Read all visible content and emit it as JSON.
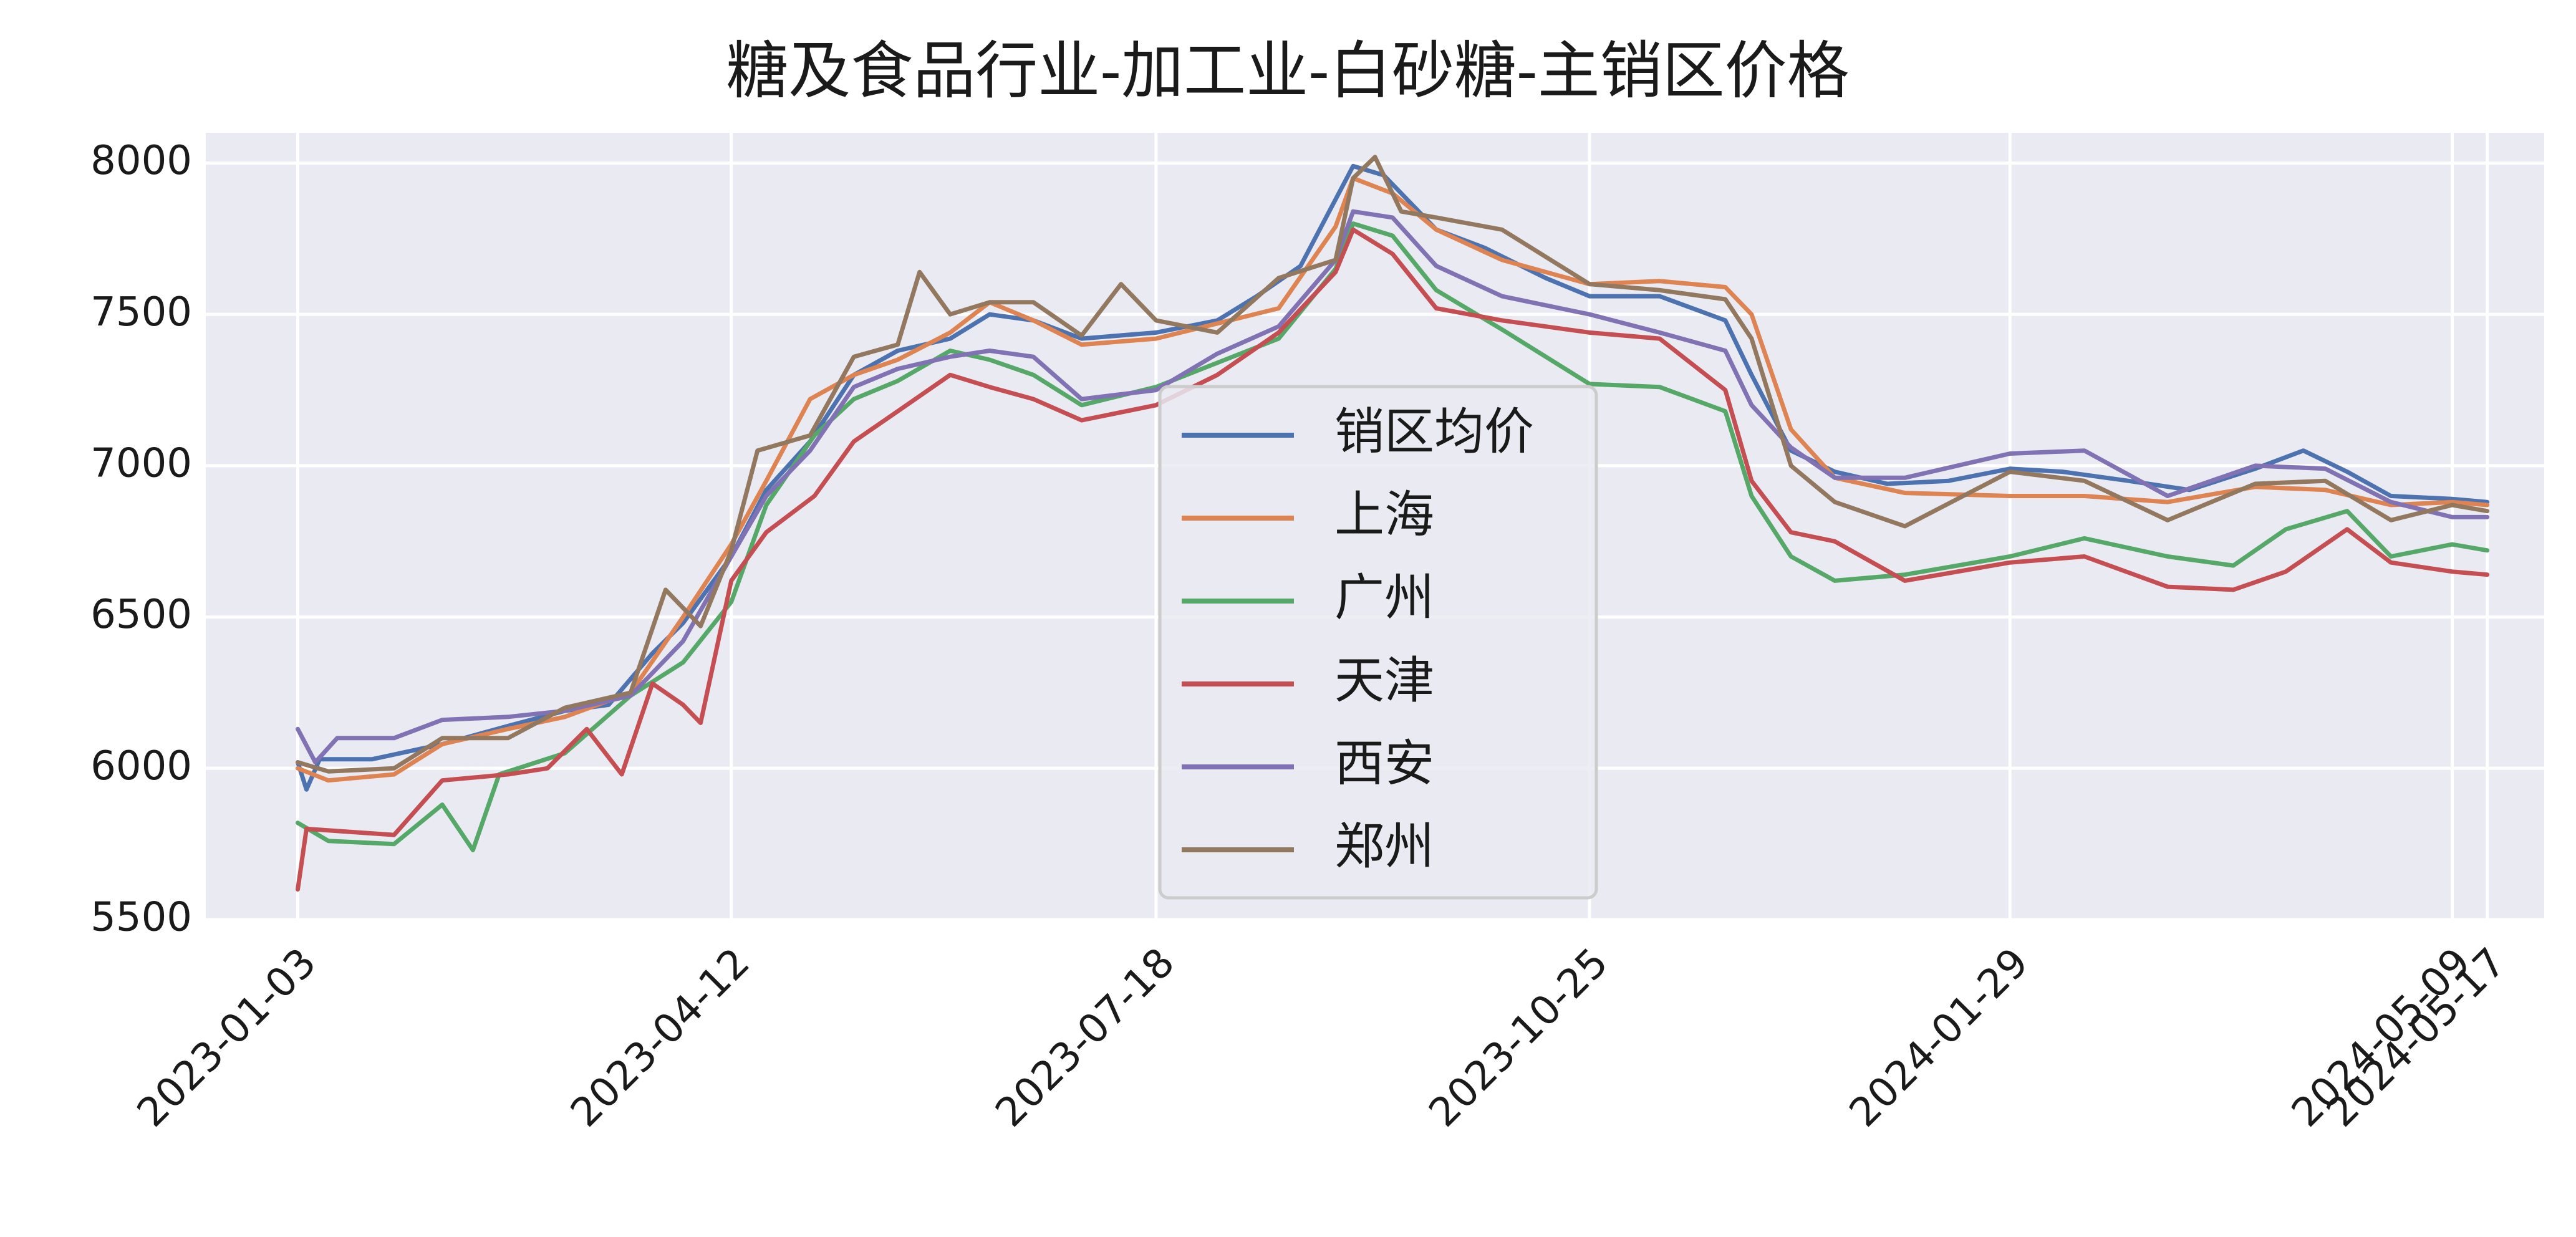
{
  "chart_data": {
    "type": "line",
    "title": "糖及食品行业-加工业-白砂糖-主销区价格",
    "xlabel": "",
    "ylabel": "",
    "ylim": [
      5500,
      8100
    ],
    "yticks": [
      5500,
      6000,
      6500,
      7000,
      7500,
      8000
    ],
    "xlim": [
      "2022-12-13",
      "2024-05-30"
    ],
    "xticks": [
      "2023-01-03",
      "2023-04-12",
      "2023-07-18",
      "2023-10-25",
      "2024-01-29",
      "2024-05-09",
      "2024-05-17"
    ],
    "grid": true,
    "legend_position": "center",
    "series": [
      {
        "name": "销区均价",
        "color": "#4c72b0",
        "points": [
          [
            "2023-01-03",
            6020
          ],
          [
            "2023-01-05",
            5930
          ],
          [
            "2023-01-08",
            6030
          ],
          [
            "2023-01-20",
            6030
          ],
          [
            "2023-02-05",
            6080
          ],
          [
            "2023-02-20",
            6140
          ],
          [
            "2023-03-05",
            6190
          ],
          [
            "2023-03-15",
            6210
          ],
          [
            "2023-03-25",
            6380
          ],
          [
            "2023-04-01",
            6480
          ],
          [
            "2023-04-12",
            6700
          ],
          [
            "2023-04-20",
            6920
          ],
          [
            "2023-04-30",
            7080
          ],
          [
            "2023-05-10",
            7300
          ],
          [
            "2023-05-20",
            7380
          ],
          [
            "2023-06-01",
            7420
          ],
          [
            "2023-06-10",
            7500
          ],
          [
            "2023-06-20",
            7480
          ],
          [
            "2023-07-01",
            7420
          ],
          [
            "2023-07-18",
            7440
          ],
          [
            "2023-08-01",
            7480
          ],
          [
            "2023-08-10",
            7560
          ],
          [
            "2023-08-20",
            7660
          ],
          [
            "2023-08-28",
            7880
          ],
          [
            "2023-09-01",
            7990
          ],
          [
            "2023-09-08",
            7960
          ],
          [
            "2023-09-20",
            7780
          ],
          [
            "2023-10-01",
            7720
          ],
          [
            "2023-10-15",
            7620
          ],
          [
            "2023-10-25",
            7560
          ],
          [
            "2023-11-10",
            7560
          ],
          [
            "2023-11-25",
            7480
          ],
          [
            "2023-12-01",
            7300
          ],
          [
            "2023-12-10",
            7050
          ],
          [
            "2023-12-20",
            6980
          ],
          [
            "2024-01-01",
            6940
          ],
          [
            "2024-01-15",
            6950
          ],
          [
            "2024-01-29",
            6990
          ],
          [
            "2024-02-10",
            6980
          ],
          [
            "2024-02-25",
            6950
          ],
          [
            "2024-03-10",
            6920
          ],
          [
            "2024-03-25",
            6990
          ],
          [
            "2024-04-05",
            7050
          ],
          [
            "2024-04-15",
            6980
          ],
          [
            "2024-04-25",
            6900
          ],
          [
            "2024-05-09",
            6890
          ],
          [
            "2024-05-17",
            6880
          ]
        ]
      },
      {
        "name": "上海",
        "color": "#dd8452",
        "points": [
          [
            "2023-01-03",
            6000
          ],
          [
            "2023-01-10",
            5960
          ],
          [
            "2023-01-25",
            5980
          ],
          [
            "2023-02-05",
            6080
          ],
          [
            "2023-02-20",
            6130
          ],
          [
            "2023-03-05",
            6170
          ],
          [
            "2023-03-20",
            6250
          ],
          [
            "2023-04-01",
            6500
          ],
          [
            "2023-04-12",
            6740
          ],
          [
            "2023-04-20",
            6950
          ],
          [
            "2023-04-30",
            7220
          ],
          [
            "2023-05-10",
            7300
          ],
          [
            "2023-05-20",
            7350
          ],
          [
            "2023-06-01",
            7440
          ],
          [
            "2023-06-10",
            7540
          ],
          [
            "2023-06-20",
            7480
          ],
          [
            "2023-07-01",
            7400
          ],
          [
            "2023-07-18",
            7420
          ],
          [
            "2023-08-01",
            7470
          ],
          [
            "2023-08-15",
            7520
          ],
          [
            "2023-08-28",
            7790
          ],
          [
            "2023-09-01",
            7950
          ],
          [
            "2023-09-10",
            7900
          ],
          [
            "2023-09-20",
            7780
          ],
          [
            "2023-10-05",
            7680
          ],
          [
            "2023-10-25",
            7600
          ],
          [
            "2023-11-10",
            7610
          ],
          [
            "2023-11-25",
            7590
          ],
          [
            "2023-12-01",
            7500
          ],
          [
            "2023-12-10",
            7120
          ],
          [
            "2023-12-20",
            6960
          ],
          [
            "2024-01-05",
            6910
          ],
          [
            "2024-01-29",
            6900
          ],
          [
            "2024-02-15",
            6900
          ],
          [
            "2024-03-05",
            6880
          ],
          [
            "2024-03-25",
            6930
          ],
          [
            "2024-04-10",
            6920
          ],
          [
            "2024-04-25",
            6870
          ],
          [
            "2024-05-09",
            6880
          ],
          [
            "2024-05-17",
            6870
          ]
        ]
      },
      {
        "name": "广州",
        "color": "#55a868",
        "points": [
          [
            "2023-01-03",
            5820
          ],
          [
            "2023-01-10",
            5760
          ],
          [
            "2023-01-25",
            5750
          ],
          [
            "2023-02-05",
            5880
          ],
          [
            "2023-02-12",
            5730
          ],
          [
            "2023-02-18",
            5980
          ],
          [
            "2023-03-05",
            6050
          ],
          [
            "2023-03-20",
            6240
          ],
          [
            "2023-04-01",
            6350
          ],
          [
            "2023-04-12",
            6550
          ],
          [
            "2023-04-20",
            6870
          ],
          [
            "2023-05-01",
            7100
          ],
          [
            "2023-05-10",
            7220
          ],
          [
            "2023-05-20",
            7280
          ],
          [
            "2023-06-01",
            7380
          ],
          [
            "2023-06-10",
            7350
          ],
          [
            "2023-06-20",
            7300
          ],
          [
            "2023-07-01",
            7200
          ],
          [
            "2023-07-18",
            7260
          ],
          [
            "2023-08-01",
            7340
          ],
          [
            "2023-08-15",
            7420
          ],
          [
            "2023-08-28",
            7650
          ],
          [
            "2023-09-01",
            7800
          ],
          [
            "2023-09-10",
            7760
          ],
          [
            "2023-09-20",
            7580
          ],
          [
            "2023-10-05",
            7450
          ],
          [
            "2023-10-25",
            7270
          ],
          [
            "2023-11-10",
            7260
          ],
          [
            "2023-11-25",
            7180
          ],
          [
            "2023-12-01",
            6900
          ],
          [
            "2023-12-10",
            6700
          ],
          [
            "2023-12-20",
            6620
          ],
          [
            "2024-01-05",
            6640
          ],
          [
            "2024-01-29",
            6700
          ],
          [
            "2024-02-15",
            6760
          ],
          [
            "2024-03-05",
            6700
          ],
          [
            "2024-03-20",
            6670
          ],
          [
            "2024-04-01",
            6790
          ],
          [
            "2024-04-15",
            6850
          ],
          [
            "2024-04-25",
            6700
          ],
          [
            "2024-05-09",
            6740
          ],
          [
            "2024-05-17",
            6720
          ]
        ]
      },
      {
        "name": "天津",
        "color": "#c44e52",
        "points": [
          [
            "2023-01-03",
            5600
          ],
          [
            "2023-01-05",
            5800
          ],
          [
            "2023-01-15",
            5790
          ],
          [
            "2023-01-25",
            5780
          ],
          [
            "2023-02-05",
            5960
          ],
          [
            "2023-02-20",
            5980
          ],
          [
            "2023-03-01",
            6000
          ],
          [
            "2023-03-10",
            6130
          ],
          [
            "2023-03-18",
            5980
          ],
          [
            "2023-03-25",
            6280
          ],
          [
            "2023-04-01",
            6210
          ],
          [
            "2023-04-05",
            6150
          ],
          [
            "2023-04-12",
            6620
          ],
          [
            "2023-04-20",
            6780
          ],
          [
            "2023-05-01",
            6900
          ],
          [
            "2023-05-10",
            7080
          ],
          [
            "2023-05-20",
            7180
          ],
          [
            "2023-06-01",
            7300
          ],
          [
            "2023-06-10",
            7260
          ],
          [
            "2023-06-20",
            7220
          ],
          [
            "2023-07-01",
            7150
          ],
          [
            "2023-07-18",
            7200
          ],
          [
            "2023-08-01",
            7300
          ],
          [
            "2023-08-15",
            7440
          ],
          [
            "2023-08-28",
            7640
          ],
          [
            "2023-09-01",
            7780
          ],
          [
            "2023-09-10",
            7700
          ],
          [
            "2023-09-20",
            7520
          ],
          [
            "2023-10-05",
            7480
          ],
          [
            "2023-10-25",
            7440
          ],
          [
            "2023-11-10",
            7420
          ],
          [
            "2023-11-25",
            7250
          ],
          [
            "2023-12-01",
            6950
          ],
          [
            "2023-12-10",
            6780
          ],
          [
            "2023-12-20",
            6750
          ],
          [
            "2024-01-05",
            6620
          ],
          [
            "2024-01-29",
            6680
          ],
          [
            "2024-02-15",
            6700
          ],
          [
            "2024-03-05",
            6600
          ],
          [
            "2024-03-20",
            6590
          ],
          [
            "2024-04-01",
            6650
          ],
          [
            "2024-04-15",
            6790
          ],
          [
            "2024-04-25",
            6680
          ],
          [
            "2024-05-09",
            6650
          ],
          [
            "2024-05-17",
            6640
          ]
        ]
      },
      {
        "name": "西安",
        "color": "#8172b3",
        "points": [
          [
            "2023-01-03",
            6130
          ],
          [
            "2023-01-07",
            6020
          ],
          [
            "2023-01-12",
            6100
          ],
          [
            "2023-01-25",
            6100
          ],
          [
            "2023-02-05",
            6160
          ],
          [
            "2023-02-20",
            6170
          ],
          [
            "2023-03-05",
            6190
          ],
          [
            "2023-03-20",
            6240
          ],
          [
            "2023-04-01",
            6420
          ],
          [
            "2023-04-12",
            6700
          ],
          [
            "2023-04-20",
            6900
          ],
          [
            "2023-04-30",
            7050
          ],
          [
            "2023-05-10",
            7260
          ],
          [
            "2023-05-20",
            7320
          ],
          [
            "2023-06-01",
            7360
          ],
          [
            "2023-06-10",
            7380
          ],
          [
            "2023-06-20",
            7360
          ],
          [
            "2023-07-01",
            7220
          ],
          [
            "2023-07-18",
            7250
          ],
          [
            "2023-08-01",
            7370
          ],
          [
            "2023-08-15",
            7460
          ],
          [
            "2023-08-28",
            7680
          ],
          [
            "2023-09-01",
            7840
          ],
          [
            "2023-09-10",
            7820
          ],
          [
            "2023-09-20",
            7660
          ],
          [
            "2023-10-05",
            7560
          ],
          [
            "2023-10-25",
            7500
          ],
          [
            "2023-11-10",
            7440
          ],
          [
            "2023-11-25",
            7380
          ],
          [
            "2023-12-01",
            7200
          ],
          [
            "2023-12-10",
            7060
          ],
          [
            "2023-12-20",
            6960
          ],
          [
            "2024-01-05",
            6960
          ],
          [
            "2024-01-29",
            7040
          ],
          [
            "2024-02-15",
            7050
          ],
          [
            "2024-03-05",
            6900
          ],
          [
            "2024-03-25",
            7000
          ],
          [
            "2024-04-10",
            6990
          ],
          [
            "2024-04-25",
            6880
          ],
          [
            "2024-05-09",
            6830
          ],
          [
            "2024-05-17",
            6830
          ]
        ]
      },
      {
        "name": "郑州",
        "color": "#937860",
        "points": [
          [
            "2023-01-03",
            6020
          ],
          [
            "2023-01-10",
            5990
          ],
          [
            "2023-01-25",
            6000
          ],
          [
            "2023-02-05",
            6100
          ],
          [
            "2023-02-20",
            6100
          ],
          [
            "2023-03-05",
            6200
          ],
          [
            "2023-03-20",
            6250
          ],
          [
            "2023-03-28",
            6590
          ],
          [
            "2023-04-05",
            6470
          ],
          [
            "2023-04-12",
            6720
          ],
          [
            "2023-04-18",
            7050
          ],
          [
            "2023-04-30",
            7100
          ],
          [
            "2023-05-10",
            7360
          ],
          [
            "2023-05-20",
            7400
          ],
          [
            "2023-05-25",
            7640
          ],
          [
            "2023-06-01",
            7500
          ],
          [
            "2023-06-10",
            7540
          ],
          [
            "2023-06-20",
            7540
          ],
          [
            "2023-07-01",
            7430
          ],
          [
            "2023-07-10",
            7600
          ],
          [
            "2023-07-18",
            7480
          ],
          [
            "2023-08-01",
            7440
          ],
          [
            "2023-08-15",
            7620
          ],
          [
            "2023-08-28",
            7680
          ],
          [
            "2023-09-01",
            7950
          ],
          [
            "2023-09-06",
            8020
          ],
          [
            "2023-09-12",
            7840
          ],
          [
            "2023-09-20",
            7820
          ],
          [
            "2023-10-05",
            7780
          ],
          [
            "2023-10-25",
            7600
          ],
          [
            "2023-11-10",
            7580
          ],
          [
            "2023-11-25",
            7550
          ],
          [
            "2023-12-01",
            7420
          ],
          [
            "2023-12-10",
            7000
          ],
          [
            "2023-12-20",
            6880
          ],
          [
            "2024-01-05",
            6800
          ],
          [
            "2024-01-29",
            6980
          ],
          [
            "2024-02-15",
            6950
          ],
          [
            "2024-03-05",
            6820
          ],
          [
            "2024-03-25",
            6940
          ],
          [
            "2024-04-10",
            6950
          ],
          [
            "2024-04-25",
            6820
          ],
          [
            "2024-05-09",
            6870
          ],
          [
            "2024-05-17",
            6850
          ]
        ]
      }
    ]
  }
}
